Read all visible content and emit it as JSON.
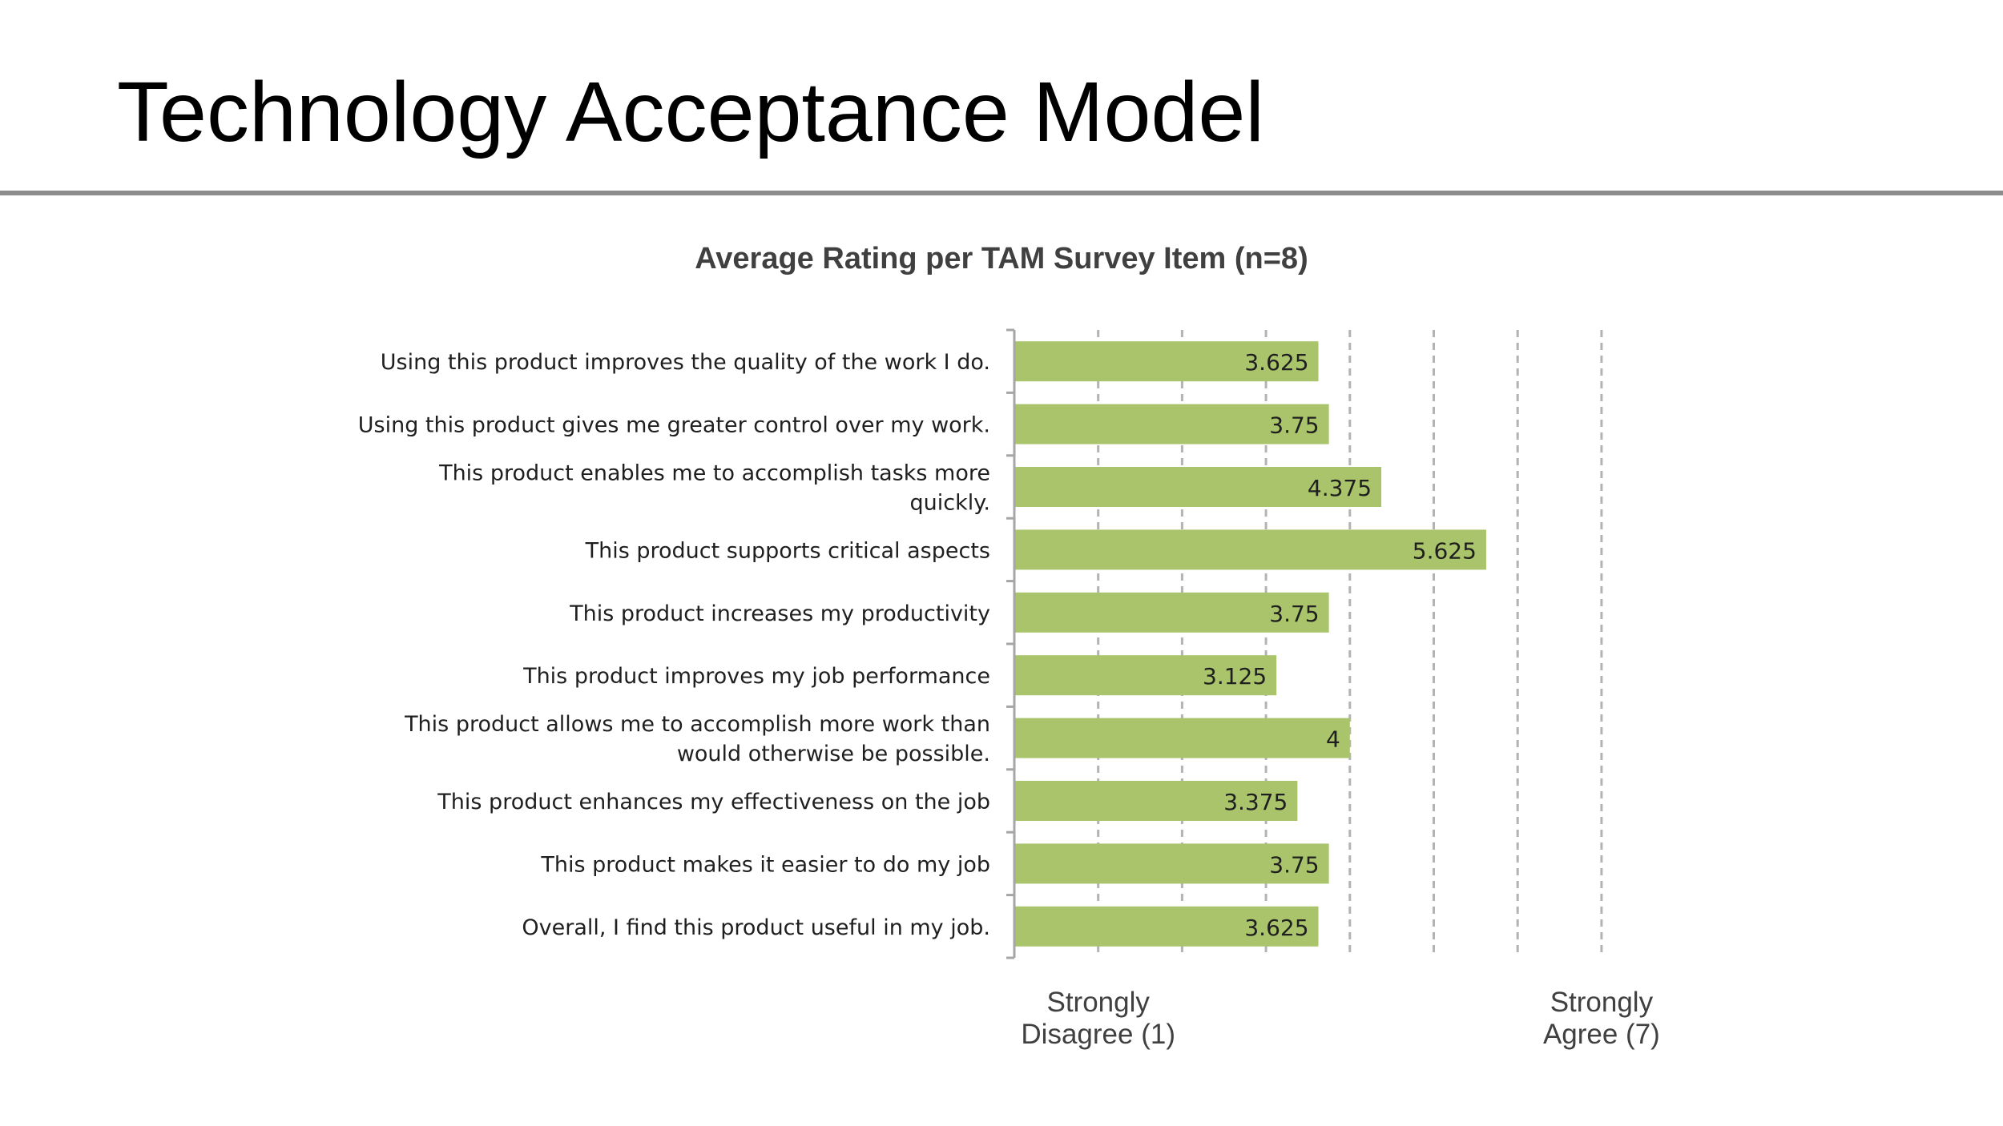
{
  "slide": {
    "title": "Technology Acceptance Model"
  },
  "chart_data": {
    "type": "bar",
    "orientation": "horizontal",
    "title": "Average Rating per TAM Survey Item (n=8)",
    "categories": [
      [
        "Using this product improves the quality of the work I do."
      ],
      [
        "Using this product gives me greater control over my work."
      ],
      [
        "This product enables me to accomplish tasks more",
        "quickly."
      ],
      [
        "This product supports critical aspects"
      ],
      [
        "This product increases my productivity"
      ],
      [
        "This product improves my job performance"
      ],
      [
        "This product allows me to accomplish more work than",
        "would otherwise be possible."
      ],
      [
        "This product enhances my effectiveness on the job"
      ],
      [
        "This product makes it easier to do my job"
      ],
      [
        "Overall, I find this product useful in my job."
      ]
    ],
    "values": [
      3.625,
      3.75,
      4.375,
      5.625,
      3.75,
      3.125,
      4,
      3.375,
      3.75,
      3.625
    ],
    "value_labels": [
      "3.625",
      "3.75",
      "4.375",
      "5.625",
      "3.75",
      "3.125",
      "4",
      "3.375",
      "3.75",
      "3.625"
    ],
    "xlim": [
      0,
      7
    ],
    "gridlines": [
      1,
      2,
      3,
      4,
      5,
      6,
      7
    ],
    "grid_style": "dashed",
    "scale_labels": [
      {
        "value": 1,
        "lines": [
          "Strongly",
          "Disagree (1)"
        ]
      },
      {
        "value": 7,
        "lines": [
          "Strongly",
          "Agree (7)"
        ]
      }
    ],
    "colors": {
      "bar": "#a9c46a",
      "grid": "#b3b3b3",
      "axis": "#a6a6a6",
      "title": "#404040",
      "labels": "#1f1f1f",
      "scale_labels": "#404040"
    }
  }
}
